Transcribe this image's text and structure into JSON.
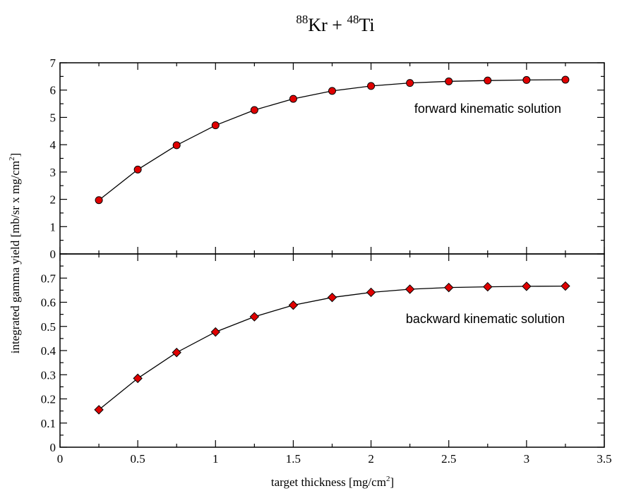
{
  "title": {
    "mass1": "88",
    "elem1": "Kr",
    "plus": " + ",
    "mass2": "48",
    "elem2": "Ti"
  },
  "ylabel": {
    "main": "integrated gamma yield [mb/sr x mg/cm",
    "sup": "2",
    "close": "]"
  },
  "xlabel": {
    "main": "target thickness [mg/cm",
    "sup": "2",
    "close": "]"
  },
  "chart_data": [
    {
      "type": "line",
      "panel": "top",
      "annotation": "forward kinematic solution",
      "marker": "circle",
      "marker_color": "#e00000",
      "line_color": "#000000",
      "xlim": [
        0,
        3.5
      ],
      "ylim": [
        0,
        7
      ],
      "yticks": [
        "0",
        "1",
        "2",
        "3",
        "4",
        "5",
        "6",
        "7"
      ],
      "x": [
        0.25,
        0.5,
        0.75,
        1.0,
        1.25,
        1.5,
        1.75,
        2.0,
        2.25,
        2.5,
        2.75,
        3.0,
        3.25
      ],
      "y": [
        1.97,
        3.09,
        3.98,
        4.71,
        5.27,
        5.68,
        5.97,
        6.15,
        6.26,
        6.32,
        6.35,
        6.37,
        6.38
      ]
    },
    {
      "type": "line",
      "panel": "bottom",
      "annotation": "backward kinematic solution",
      "marker": "diamond",
      "marker_color": "#e00000",
      "line_color": "#000000",
      "xlim": [
        0,
        3.5
      ],
      "ylim": [
        0,
        0.8
      ],
      "xticks": [
        "0",
        "0.5",
        "1",
        "1.5",
        "2",
        "2.5",
        "3",
        "3.5"
      ],
      "yticks": [
        "0",
        "0.1",
        "0.2",
        "0.3",
        "0.4",
        "0.5",
        "0.6",
        "0.7"
      ],
      "x": [
        0.25,
        0.5,
        0.75,
        1.0,
        1.25,
        1.5,
        1.75,
        2.0,
        2.25,
        2.5,
        2.75,
        3.0,
        3.25
      ],
      "y": [
        0.155,
        0.285,
        0.392,
        0.477,
        0.54,
        0.588,
        0.62,
        0.641,
        0.654,
        0.661,
        0.664,
        0.666,
        0.667
      ]
    }
  ]
}
